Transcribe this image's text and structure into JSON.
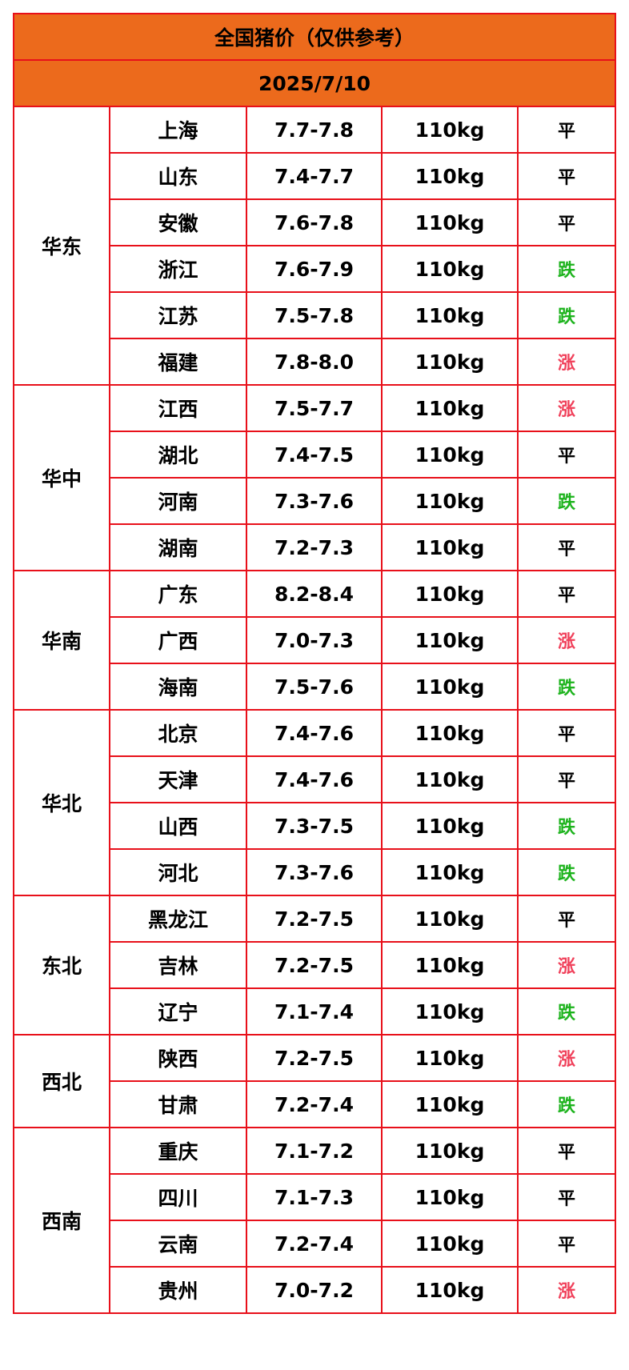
{
  "header": {
    "title": "全国猪价（仅供参考）",
    "date": "2025/7/10"
  },
  "regions": [
    {
      "name": "华东",
      "rows": [
        {
          "province": "上海",
          "price": "7.7-7.8",
          "weight": "110kg",
          "trend": "平",
          "trend_color": "#000000"
        },
        {
          "province": "山东",
          "price": "7.4-7.7",
          "weight": "110kg",
          "trend": "平",
          "trend_color": "#000000"
        },
        {
          "province": "安徽",
          "price": "7.6-7.8",
          "weight": "110kg",
          "trend": "平",
          "trend_color": "#000000"
        },
        {
          "province": "浙江",
          "price": "7.6-7.9",
          "weight": "110kg",
          "trend": "跌",
          "trend_color": "#1db31d"
        },
        {
          "province": "江苏",
          "price": "7.5-7.8",
          "weight": "110kg",
          "trend": "跌",
          "trend_color": "#1db31d"
        },
        {
          "province": "福建",
          "price": "7.8-8.0",
          "weight": "110kg",
          "trend": "涨",
          "trend_color": "#f0405a"
        }
      ]
    },
    {
      "name": "华中",
      "rows": [
        {
          "province": "江西",
          "price": "7.5-7.7",
          "weight": "110kg",
          "trend": "涨",
          "trend_color": "#f0405a"
        },
        {
          "province": "湖北",
          "price": "7.4-7.5",
          "weight": "110kg",
          "trend": "平",
          "trend_color": "#000000"
        },
        {
          "province": "河南",
          "price": "7.3-7.6",
          "weight": "110kg",
          "trend": "跌",
          "trend_color": "#1db31d"
        },
        {
          "province": "湖南",
          "price": "7.2-7.3",
          "weight": "110kg",
          "trend": "平",
          "trend_color": "#000000"
        }
      ]
    },
    {
      "name": "华南",
      "rows": [
        {
          "province": "广东",
          "price": "8.2-8.4",
          "weight": "110kg",
          "trend": "平",
          "trend_color": "#000000"
        },
        {
          "province": "广西",
          "price": "7.0-7.3",
          "weight": "110kg",
          "trend": "涨",
          "trend_color": "#f0405a"
        },
        {
          "province": "海南",
          "price": "7.5-7.6",
          "weight": "110kg",
          "trend": "跌",
          "trend_color": "#1db31d"
        }
      ]
    },
    {
      "name": "华北",
      "rows": [
        {
          "province": "北京",
          "price": "7.4-7.6",
          "weight": "110kg",
          "trend": "平",
          "trend_color": "#000000"
        },
        {
          "province": "天津",
          "price": "7.4-7.6",
          "weight": "110kg",
          "trend": "平",
          "trend_color": "#000000"
        },
        {
          "province": "山西",
          "price": "7.3-7.5",
          "weight": "110kg",
          "trend": "跌",
          "trend_color": "#1db31d"
        },
        {
          "province": "河北",
          "price": "7.3-7.6",
          "weight": "110kg",
          "trend": "跌",
          "trend_color": "#1db31d"
        }
      ]
    },
    {
      "name": "东北",
      "rows": [
        {
          "province": "黑龙江",
          "price": "7.2-7.5",
          "weight": "110kg",
          "trend": "平",
          "trend_color": "#000000"
        },
        {
          "province": "吉林",
          "price": "7.2-7.5",
          "weight": "110kg",
          "trend": "涨",
          "trend_color": "#f0405a"
        },
        {
          "province": "辽宁",
          "price": "7.1-7.4",
          "weight": "110kg",
          "trend": "跌",
          "trend_color": "#1db31d"
        }
      ]
    },
    {
      "name": "西北",
      "rows": [
        {
          "province": "陕西",
          "price": "7.2-7.5",
          "weight": "110kg",
          "trend": "涨",
          "trend_color": "#f0405a"
        },
        {
          "province": "甘肃",
          "price": "7.2-7.4",
          "weight": "110kg",
          "trend": "跌",
          "trend_color": "#1db31d"
        }
      ]
    },
    {
      "name": "西南",
      "rows": [
        {
          "province": "重庆",
          "price": "7.1-7.2",
          "weight": "110kg",
          "trend": "平",
          "trend_color": "#000000"
        },
        {
          "province": "四川",
          "price": "7.1-7.3",
          "weight": "110kg",
          "trend": "平",
          "trend_color": "#000000"
        },
        {
          "province": "云南",
          "price": "7.2-7.4",
          "weight": "110kg",
          "trend": "平",
          "trend_color": "#000000"
        },
        {
          "province": "贵州",
          "price": "7.0-7.2",
          "weight": "110kg",
          "trend": "涨",
          "trend_color": "#f0405a"
        }
      ]
    }
  ]
}
